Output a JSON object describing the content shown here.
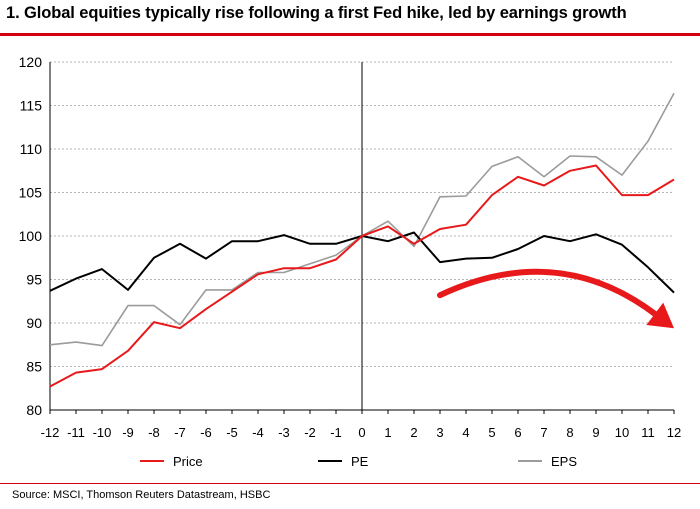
{
  "chart_data": {
    "type": "line",
    "title": "1. Global equities typically rise following a first Fed hike, led by earnings growth",
    "source": "Source: MSCI, Thomson Reuters Datastream, HSBC",
    "xlabel": "",
    "ylabel": "",
    "x": [
      -12,
      -11,
      -10,
      -9,
      -8,
      -7,
      -6,
      -5,
      -4,
      -3,
      -2,
      -1,
      0,
      1,
      2,
      3,
      4,
      5,
      6,
      7,
      8,
      9,
      10,
      11,
      12
    ],
    "x_tick_labels": [
      "-12",
      "-11",
      "-10",
      "-9",
      "-8",
      "-7",
      "-6",
      "-5",
      "-4",
      "-3",
      "-2",
      "-1",
      "0",
      "1",
      "2",
      "3",
      "4",
      "5",
      "6",
      "7",
      "8",
      "9",
      "10",
      "11",
      "12"
    ],
    "ylim": [
      80,
      120
    ],
    "y_ticks": [
      80,
      85,
      90,
      95,
      100,
      105,
      110,
      115,
      120
    ],
    "grid": "horizontal",
    "vertical_marker_x": 0,
    "legend_position": "bottom",
    "series": [
      {
        "name": "Price",
        "color": "#e8191b",
        "values": [
          82.7,
          84.3,
          84.7,
          86.8,
          90.1,
          89.4,
          91.6,
          93.6,
          95.6,
          96.3,
          96.3,
          97.3,
          100.0,
          101.1,
          99.1,
          100.8,
          101.3,
          104.7,
          106.8,
          105.8,
          107.5,
          108.1,
          104.7,
          104.7,
          106.5
        ]
      },
      {
        "name": "PE",
        "color": "#000000",
        "values": [
          93.7,
          95.1,
          96.2,
          93.8,
          97.5,
          99.1,
          97.4,
          99.4,
          99.4,
          100.1,
          99.1,
          99.1,
          100.0,
          99.4,
          100.4,
          97.0,
          97.4,
          97.5,
          98.5,
          100.0,
          99.4,
          100.2,
          99.0,
          96.4,
          93.5
        ]
      },
      {
        "name": "EPS",
        "color": "#9b9b9b",
        "values": [
          87.5,
          87.8,
          87.4,
          92.0,
          92.0,
          89.8,
          93.8,
          93.8,
          95.8,
          95.8,
          96.8,
          97.8,
          100.0,
          101.7,
          98.8,
          104.5,
          104.6,
          108.0,
          109.1,
          106.8,
          109.2,
          109.1,
          107.0,
          110.9,
          116.4
        ]
      }
    ],
    "annotation": {
      "type": "curved-arrow",
      "color": "#e8191b",
      "from_x": 3,
      "from_y": 93.2,
      "control_x": 7.5,
      "control_y": 99.5,
      "to_x": 12,
      "to_y": 89.4
    }
  }
}
